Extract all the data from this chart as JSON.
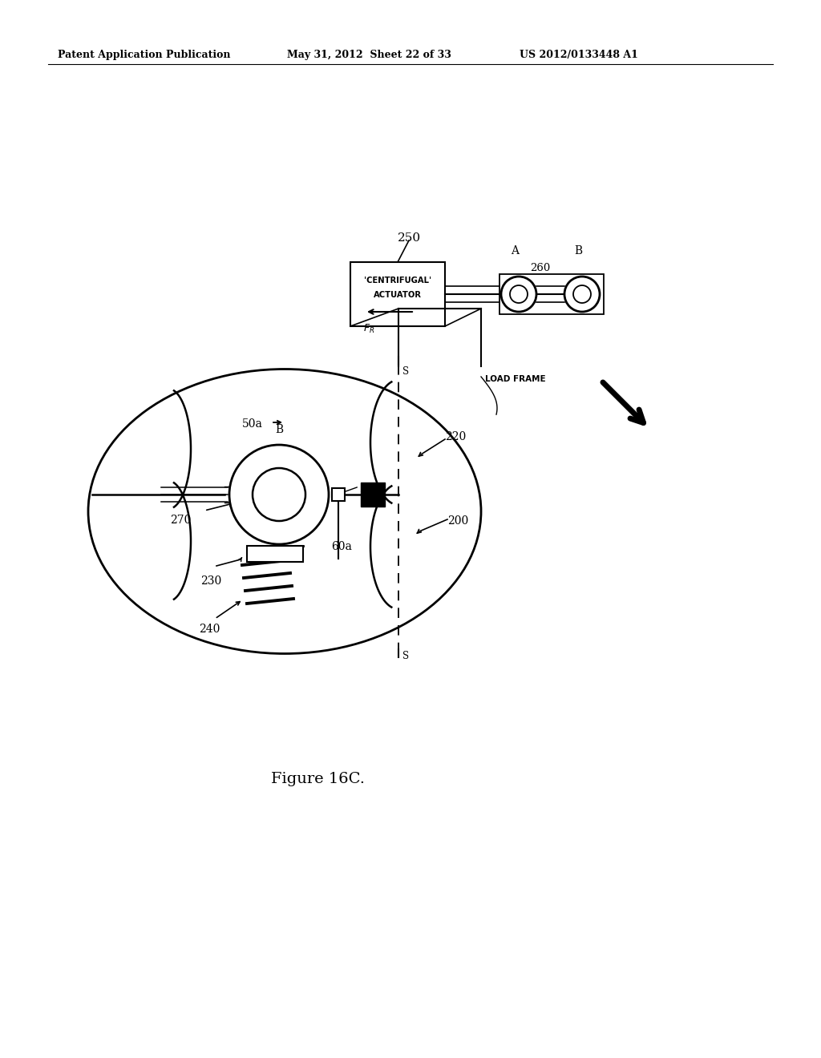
{
  "bg_color": "#ffffff",
  "header_left": "Patent Application Publication",
  "header_mid": "May 31, 2012  Sheet 22 of 33",
  "header_right": "US 2012/0133448 A1",
  "figure_label": "Figure 16C.",
  "header_fontsize": 9,
  "fig_label_fontsize": 14
}
